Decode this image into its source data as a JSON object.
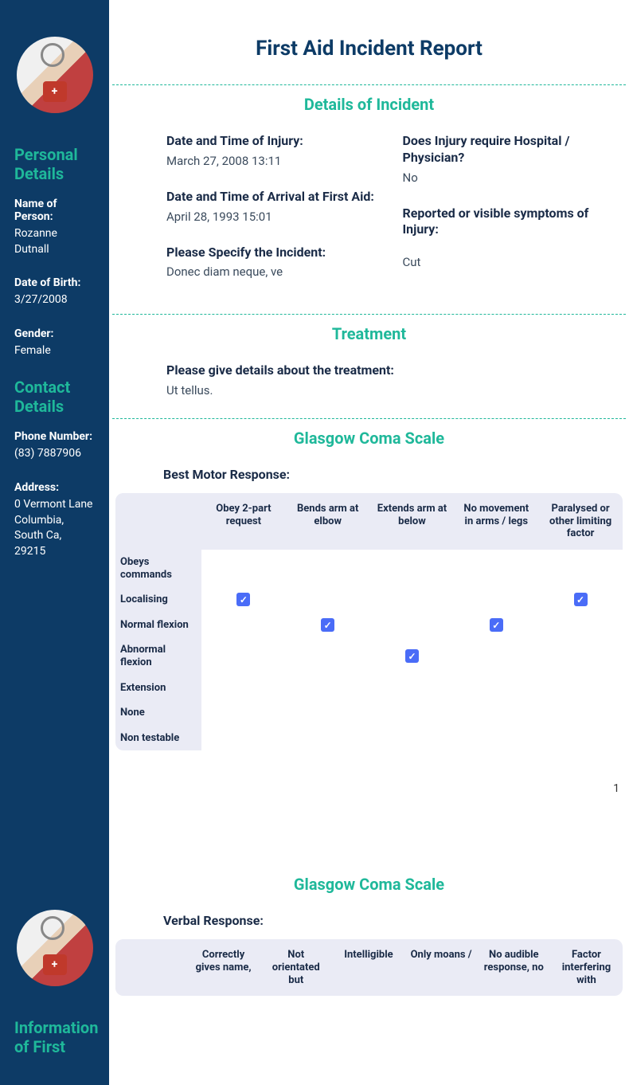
{
  "colors": {
    "sidebar_bg": "#0d3b66",
    "accent": "#1fb89a",
    "text_dark": "#1a2b47",
    "text_body": "#3a4a5c",
    "table_header_bg": "#eaebf5",
    "checkbox_blue": "#4a6cf7",
    "white": "#ffffff"
  },
  "sidebar": {
    "heading_personal": "Personal Details",
    "name_label": "Name of Person:",
    "name_value": "Rozanne Dutnall",
    "dob_label": "Date of Birth:",
    "dob_value": "3/27/2008",
    "gender_label": "Gender:",
    "gender_value": "Female",
    "heading_contact": "Contact Details",
    "phone_label": "Phone Number:",
    "phone_value": "(83) 7887906",
    "address_label": "Address:",
    "address_value": "0 Vermont Lane Columbia, South Ca, 29215",
    "heading_firstaider": "Information of First"
  },
  "main": {
    "title": "First Aid Incident Report",
    "section_incident": "Details of Incident",
    "incident": {
      "dt_injury_label": "Date and Time of Injury:",
      "dt_injury_value": "March 27, 2008 13:11",
      "dt_arrival_label": "Date and Time of Arrival at First Aid:",
      "dt_arrival_value": "April 28, 1993 15:01",
      "specify_label": "Please Specify the Incident:",
      "specify_value": "Donec diam neque, ve",
      "hospital_label": "Does Injury require Hospital / Physician?",
      "hospital_value": "No",
      "symptoms_label": "Reported or visible symptoms of Injury:",
      "symptoms_value": "Cut"
    },
    "section_treatment": "Treatment",
    "treatment": {
      "details_label": "Please give details about the treatment:",
      "details_value": "Ut tellus."
    },
    "section_gcs": "Glasgow Coma Scale",
    "gcs_motor": {
      "heading": "Best Motor Response:",
      "columns": [
        "Obey 2-part request",
        "Bends arm at elbow",
        "Extends arm at below",
        "No movement in arms / legs",
        "Paralysed or other limiting factor"
      ],
      "rows": [
        {
          "label": "Obeys commands",
          "checks": [
            false,
            false,
            false,
            false,
            false
          ]
        },
        {
          "label": "Localising",
          "checks": [
            true,
            false,
            false,
            false,
            true
          ]
        },
        {
          "label": "Normal flexion",
          "checks": [
            false,
            true,
            false,
            true,
            false
          ]
        },
        {
          "label": "Abnormal flexion",
          "checks": [
            false,
            false,
            true,
            false,
            false
          ]
        },
        {
          "label": "Extension",
          "checks": [
            false,
            false,
            false,
            false,
            false
          ]
        },
        {
          "label": "None",
          "checks": [
            false,
            false,
            false,
            false,
            false
          ]
        },
        {
          "label": "Non testable",
          "checks": [
            false,
            false,
            false,
            false,
            false
          ]
        }
      ]
    },
    "page_number": "1",
    "section_gcs2": "Glasgow Coma Scale",
    "gcs_verbal": {
      "heading": "Verbal Response:",
      "columns": [
        "Correctly gives name,",
        "Not orientated but",
        "Intelligible",
        "Only moans /",
        "No audible response, no",
        "Factor interfering with"
      ]
    }
  }
}
